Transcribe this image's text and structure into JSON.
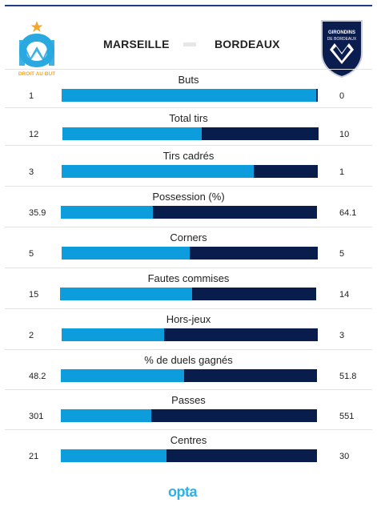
{
  "header": {
    "home_team": "MARSEILLE",
    "away_team": "BORDEAUX",
    "home_logo_text": "DROIT AU BUT",
    "away_logo_text": "GIRONDINS DE BORDEAUX"
  },
  "colors": {
    "home": "#0d9ddc",
    "away": "#081d4c",
    "brand_opta": "#2fb0e6"
  },
  "stats": [
    {
      "label": "Buts",
      "home": "1",
      "away": "0",
      "home_share": 0.995
    },
    {
      "label": "Total tirs",
      "home": "12",
      "away": "10",
      "home_share": 0.545
    },
    {
      "label": "Tirs cadrés",
      "home": "3",
      "away": "1",
      "home_share": 0.75
    },
    {
      "label": "Possession (%)",
      "home": "35.9",
      "away": "64.1",
      "home_share": 0.359
    },
    {
      "label": "Corners",
      "home": "5",
      "away": "5",
      "home_share": 0.5
    },
    {
      "label": "Fautes commises",
      "home": "15",
      "away": "14",
      "home_share": 0.517
    },
    {
      "label": "Hors-jeux",
      "home": "2",
      "away": "3",
      "home_share": 0.4
    },
    {
      "label": "% de duels gagnés",
      "home": "48.2",
      "away": "51.8",
      "home_share": 0.482
    },
    {
      "label": "Passes",
      "home": "301",
      "away": "551",
      "home_share": 0.353
    },
    {
      "label": "Centres",
      "home": "21",
      "away": "30",
      "home_share": 0.412
    }
  ],
  "footer": {
    "brand": "opta"
  }
}
